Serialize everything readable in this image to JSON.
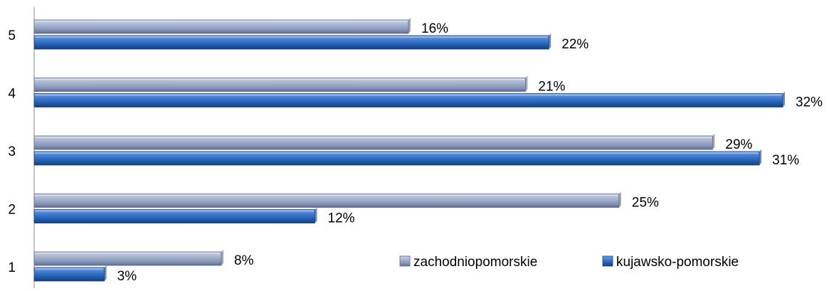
{
  "chart_data": {
    "type": "bar",
    "orientation": "horizontal",
    "categories": [
      "1",
      "2",
      "3",
      "4",
      "5"
    ],
    "series": [
      {
        "name": "zachodniopomorskie",
        "values": [
          8,
          25,
          29,
          21,
          16
        ],
        "labels": [
          "8%",
          "25%",
          "29%",
          "21%",
          "16%"
        ],
        "color": "#8c9cc0"
      },
      {
        "name": "kujawsko-pomorskie",
        "values": [
          3,
          12,
          31,
          32,
          22
        ],
        "labels": [
          "3%",
          "12%",
          "31%",
          "32%",
          "22%"
        ],
        "color": "#2f6ab6"
      }
    ],
    "xlim": [
      0,
      32
    ],
    "grid": false,
    "legend_position": "bottom-right"
  }
}
